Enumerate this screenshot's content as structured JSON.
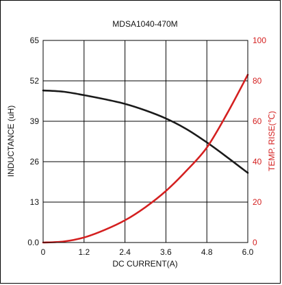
{
  "chart_data": {
    "type": "line",
    "title": "MDSA1040-470M",
    "xlabel": "DC CURRENT(A)",
    "ylabel_left": "INDUCTANCE (uH)",
    "ylabel_right": "TEMP. RISE(℃)",
    "xlim": [
      0,
      6.0
    ],
    "ylim_left": [
      0,
      65
    ],
    "ylim_right": [
      0,
      100
    ],
    "x_ticks": [
      "0",
      "1.2",
      "2.4",
      "3.6",
      "4.8",
      "6.0"
    ],
    "y_left_ticks": [
      "0.0",
      "13",
      "26",
      "39",
      "52",
      "65"
    ],
    "y_right_ticks": [
      "0",
      "20",
      "40",
      "60",
      "80",
      "100"
    ],
    "grid": true,
    "series": [
      {
        "axis": "left",
        "color": "#1a1a1a",
        "x": [
          0,
          0.6,
          1.2,
          1.8,
          2.4,
          3.0,
          3.6,
          4.2,
          4.8,
          5.4,
          6.0
        ],
        "values": [
          48.9,
          48.5,
          47.4,
          46.1,
          44.6,
          42.5,
          39.9,
          36.5,
          32.2,
          27.4,
          22.4
        ]
      },
      {
        "axis": "right",
        "color": "#d42020",
        "x": [
          0,
          0.6,
          1.2,
          1.8,
          2.4,
          3.0,
          3.6,
          4.2,
          4.8,
          5.4,
          6.0
        ],
        "values": [
          0,
          0.5,
          2.5,
          6.2,
          11.0,
          17.5,
          25.5,
          35.5,
          47.0,
          64.0,
          83.0
        ]
      }
    ]
  },
  "colors": {
    "left_axis_text": "#111111",
    "right_axis_text": "#d42020",
    "grid": "#000000"
  }
}
